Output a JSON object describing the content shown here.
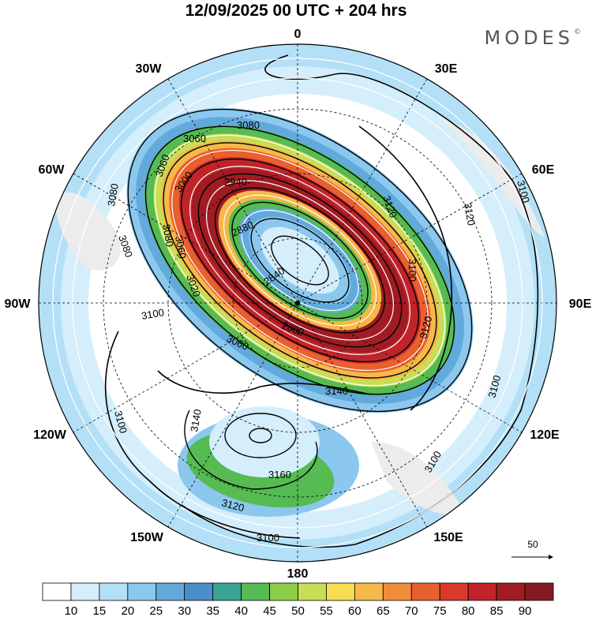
{
  "header": {
    "title": "12/09/2025  00 UTC  + 204 hrs",
    "brand": "MODES",
    "brand_mark": "©"
  },
  "map": {
    "projection": "south-polar-stereographic",
    "longitude_labels": {
      "top": "0",
      "top_right": "30E",
      "upper_right": "60E",
      "right": "90E",
      "lower_right": "120E",
      "bottom_right": "150E",
      "bottom": "180",
      "bottom_left": "150W",
      "lower_left": "120W",
      "left": "90W",
      "upper_left": "60W",
      "top_left": "30W"
    },
    "contour_labels": [
      "3080",
      "3060",
      "3060",
      "3000",
      "2940",
      "2880",
      "2840",
      "2880",
      "3060",
      "3020",
      "3080",
      "3080",
      "3080",
      "3060",
      "3120",
      "3120",
      "3100",
      "3100",
      "3100",
      "3120",
      "3140",
      "3140",
      "3160",
      "3120",
      "3100",
      "3100",
      "3100",
      "3100"
    ],
    "reference_vector": {
      "label": "50"
    },
    "colors": {
      "land_shade": "#ececec",
      "jet_core": "#a8151c",
      "contour": "#000000",
      "streamline": "#ffffff"
    }
  },
  "colorbar": {
    "ticks": [
      "10",
      "15",
      "20",
      "25",
      "30",
      "35",
      "40",
      "45",
      "50",
      "55",
      "60",
      "65",
      "70",
      "75",
      "80",
      "85",
      "90"
    ],
    "colors": [
      "#ffffff",
      "#d5eefb",
      "#b3e0f7",
      "#8cc8ee",
      "#62a9dc",
      "#4b8fc8",
      "#3aa592",
      "#55bb52",
      "#8ccc49",
      "#c7de55",
      "#f6dc53",
      "#f5b84a",
      "#f08c3a",
      "#e8602e",
      "#d93a2a",
      "#c0242a",
      "#a11b22",
      "#861a22"
    ]
  }
}
